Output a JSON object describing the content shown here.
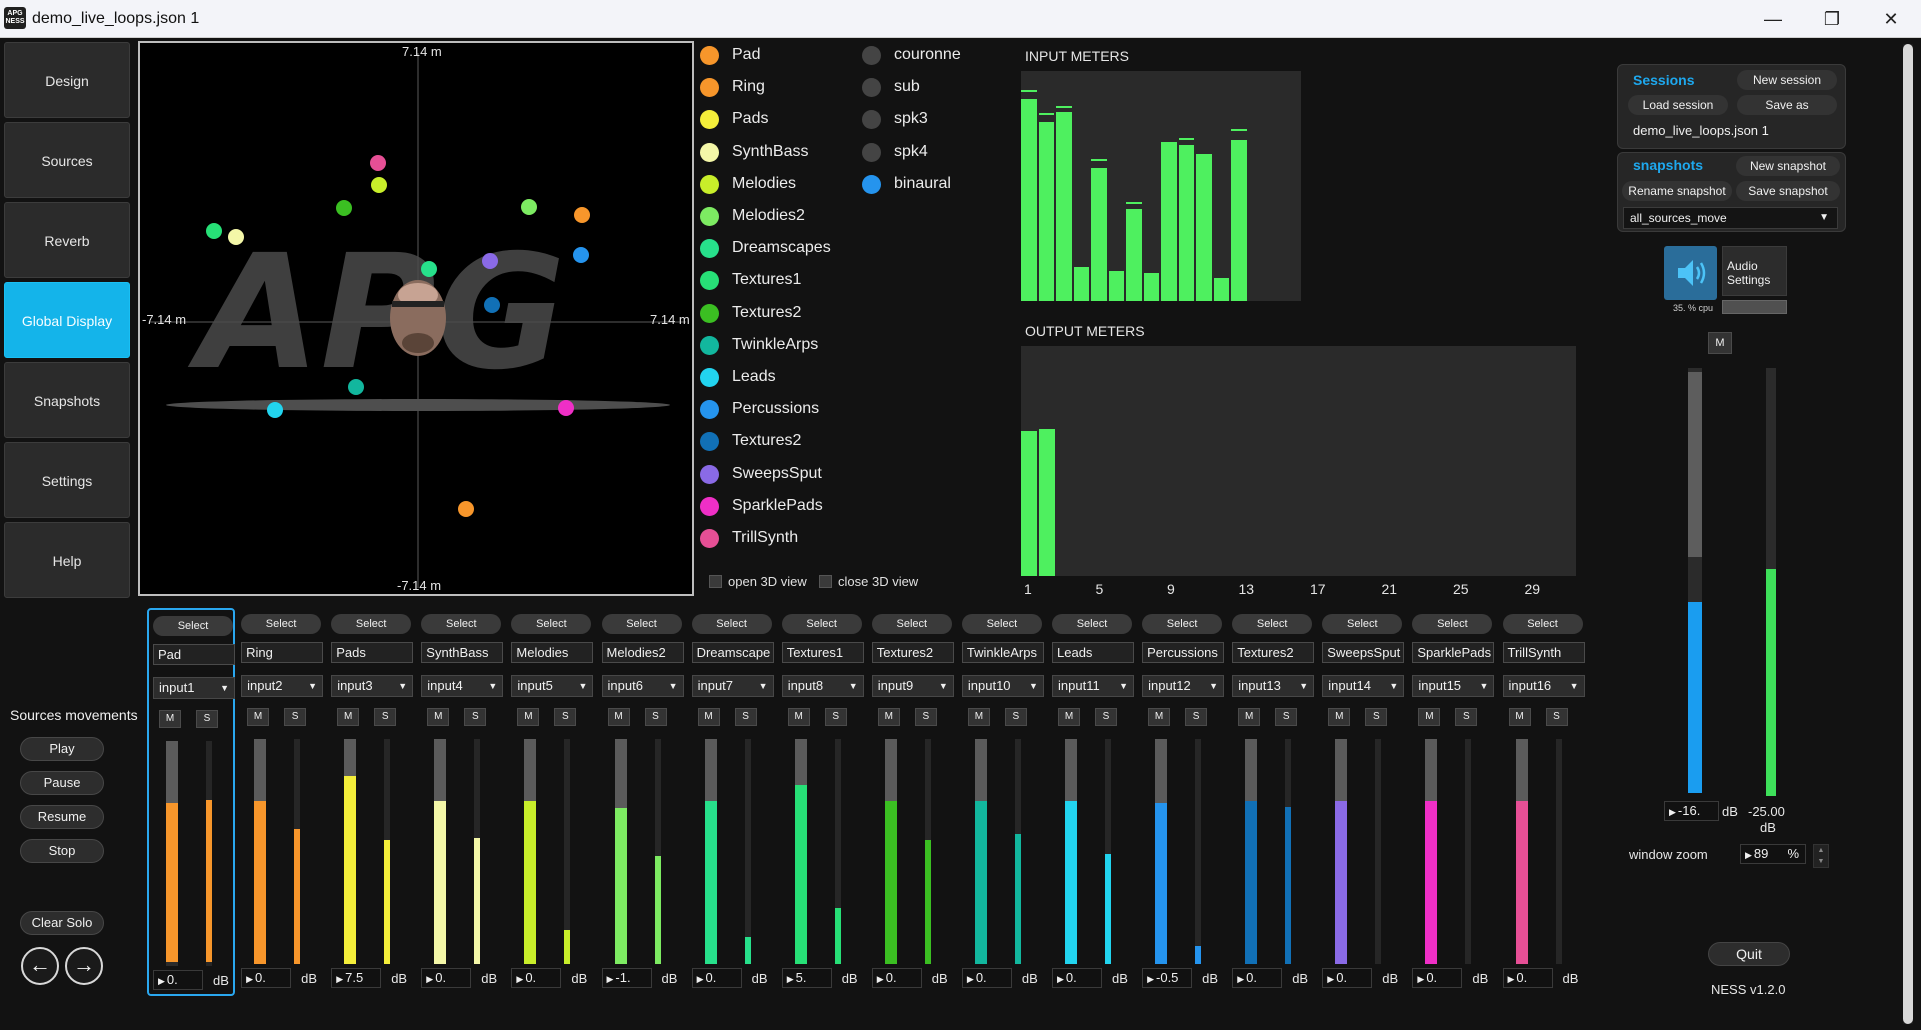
{
  "window": {
    "title": "demo_live_loops.json 1",
    "icon_text": "APG NESS"
  },
  "nav": [
    "Design",
    "Sources",
    "Reverb",
    "Global Display",
    "Snapshots",
    "Settings",
    "Help"
  ],
  "active_nav": "Global Display",
  "view3d": {
    "top_label": "7.14 m",
    "bottom_label": "-7.14 m",
    "left_label": "-7.14 m",
    "right_label": "7.14 m",
    "logo_text": "APG",
    "open_label": "open 3D view",
    "close_label": "close 3D view"
  },
  "legend_sources": [
    {
      "name": "Pad",
      "color": "#f7962b"
    },
    {
      "name": "Ring",
      "color": "#f7962b"
    },
    {
      "name": "Pads",
      "color": "#f4ee3a"
    },
    {
      "name": "SynthBass",
      "color": "#f4f7a8"
    },
    {
      "name": "Melodies",
      "color": "#c8ee2a"
    },
    {
      "name": "Melodies2",
      "color": "#7deb62"
    },
    {
      "name": "Dreamscapes",
      "color": "#27e08b"
    },
    {
      "name": "Textures1",
      "color": "#27e077"
    },
    {
      "name": "Textures2",
      "color": "#3bbf22"
    },
    {
      "name": "TwinkleArps",
      "color": "#12b79e"
    },
    {
      "name": "Leads",
      "color": "#22d4ef"
    },
    {
      "name": "Percussions",
      "color": "#2594ee"
    },
    {
      "name": "Textures2",
      "color": "#1170b6"
    },
    {
      "name": "SweepsSput",
      "color": "#8a6ae6"
    },
    {
      "name": "SparklePads",
      "color": "#ef2fc6"
    },
    {
      "name": "TrillSynth",
      "color": "#e64f95"
    }
  ],
  "legend_speakers": [
    {
      "name": "couronne",
      "color": "#444444"
    },
    {
      "name": "sub",
      "color": "#444444"
    },
    {
      "name": "spk3",
      "color": "#444444"
    },
    {
      "name": "spk4",
      "color": "#444444"
    },
    {
      "name": "binaural",
      "color": "#2594ee"
    }
  ],
  "input_meters": {
    "title": "INPUT METERS",
    "levels": [
      0.88,
      0.78,
      0.82,
      0.15,
      0.58,
      0.13,
      0.4,
      0.12,
      0.69,
      0.68,
      0.64,
      0.1,
      0.7
    ],
    "peaks": [
      0.91,
      0.81,
      0.84,
      null,
      0.61,
      null,
      0.42,
      null,
      null,
      0.7,
      null,
      null,
      0.74
    ]
  },
  "output_meters": {
    "title": "OUTPUT METERS",
    "levels": [
      0.63,
      0.64
    ],
    "ticks": [
      "1",
      "5",
      "9",
      "13",
      "17",
      "21",
      "25",
      "29"
    ]
  },
  "sessions": {
    "title": "Sessions",
    "new_label": "New session",
    "load_label": "Load session",
    "save_as_label": "Save as",
    "current": "demo_live_loops.json 1"
  },
  "snapshots": {
    "title": "snapshots",
    "new_label": "New snapshot",
    "rename_label": "Rename snapshot",
    "save_label": "Save snapshot",
    "selected": "all_sources_move"
  },
  "audio": {
    "settings_label": "Audio Settings",
    "cpu_text": "35. % cpu"
  },
  "master": {
    "mute_label": "M",
    "gain": "-16.",
    "gain_unit": "dB",
    "gain_level": 0.45,
    "meter_value": "-25.00",
    "meter_unit": "dB",
    "meter_level": 0.53
  },
  "zoom": {
    "label": "window zoom",
    "value": "89",
    "unit": "%"
  },
  "quit_label": "Quit",
  "version": "NESS v1.2.0",
  "movements": {
    "label": "Sources movements",
    "play": "Play",
    "pause": "Pause",
    "resume": "Resume",
    "stop": "Stop",
    "clear_solo": "Clear Solo",
    "prev_icon": "←",
    "next_icon": "→"
  },
  "strip_labels": {
    "select": "Select",
    "mute": "M",
    "solo": "S",
    "unit": "dB"
  },
  "channels": [
    {
      "name": "Pad",
      "input": "input1",
      "gain": "0.",
      "color": "#f7962b",
      "fader": 0.76,
      "vu": 0.72
    },
    {
      "name": "Ring",
      "input": "input2",
      "gain": "0.",
      "color": "#f7962b",
      "fader": 0.76,
      "vu": 0.6
    },
    {
      "name": "Pads",
      "input": "input3",
      "gain": "7.5",
      "color": "#f4ee3a",
      "fader": 0.87,
      "vu": 0.55
    },
    {
      "name": "SynthBass",
      "input": "input4",
      "gain": "0.",
      "color": "#f4f7a8",
      "fader": 0.76,
      "vu": 0.56
    },
    {
      "name": "Melodies",
      "input": "input5",
      "gain": "0.",
      "color": "#c8ee2a",
      "fader": 0.76,
      "vu": 0.15
    },
    {
      "name": "Melodies2",
      "input": "input6",
      "gain": "-1.",
      "color": "#7deb62",
      "fader": 0.73,
      "vu": 0.48
    },
    {
      "name": "Dreamscape",
      "input": "input7",
      "gain": "0.",
      "color": "#27e08b",
      "fader": 0.76,
      "vu": 0.12
    },
    {
      "name": "Textures1",
      "input": "input8",
      "gain": "5.",
      "color": "#27e077",
      "fader": 0.83,
      "vu": 0.25
    },
    {
      "name": "Textures2",
      "input": "input9",
      "gain": "0.",
      "color": "#3bbf22",
      "fader": 0.76,
      "vu": 0.55
    },
    {
      "name": "TwinkleArps",
      "input": "input10",
      "gain": "0.",
      "color": "#12b79e",
      "fader": 0.76,
      "vu": 0.58
    },
    {
      "name": "Leads",
      "input": "input11",
      "gain": "0.",
      "color": "#22d4ef",
      "fader": 0.76,
      "vu": 0.49
    },
    {
      "name": "Percussions",
      "input": "input12",
      "gain": "-0.5",
      "color": "#2594ee",
      "fader": 0.75,
      "vu": 0.08
    },
    {
      "name": "Textures2",
      "input": "input13",
      "gain": "0.",
      "color": "#1170b6",
      "fader": 0.76,
      "vu": 0.7
    },
    {
      "name": "SweepsSput",
      "input": "input14",
      "gain": "0.",
      "color": "#8a6ae6",
      "fader": 0.76,
      "vu": 0.0
    },
    {
      "name": "SparklePads",
      "input": "input15",
      "gain": "0.",
      "color": "#ef2fc6",
      "fader": 0.76,
      "vu": 0.0
    },
    {
      "name": "TrillSynth",
      "input": "input16",
      "gain": "0.",
      "color": "#e64f95",
      "fader": 0.76,
      "vu": 0.0
    }
  ]
}
